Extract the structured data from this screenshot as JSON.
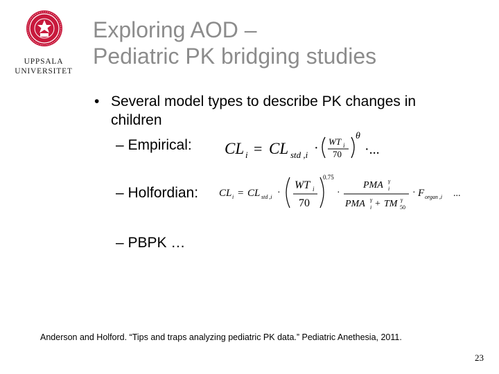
{
  "logo": {
    "line1": "UPPSALA",
    "line2": "UNIVERSITET"
  },
  "title": {
    "line1": "Exploring AOD –",
    "line2": "Pediatric PK bridging studies"
  },
  "bullet": {
    "marker": "•",
    "text": "Several model types to describe PK changes in children"
  },
  "subitems": {
    "empirical": "– Empirical:",
    "holfordian": "– Holfordian:",
    "pbpk": "– PBPK …"
  },
  "equations": {
    "empirical": {
      "lhs": "CL",
      "lhs_sub": "i",
      "eq": "=",
      "rhs": "CL",
      "rhs_sub": "std ,i",
      "dot": "·",
      "num": "WT",
      "num_sub": "i",
      "den": "70",
      "exp": "θ",
      "tail": "·..."
    },
    "holfordian": {
      "lhs": "CL",
      "lhs_sub": "i",
      "eq": "=",
      "rhs": "CL",
      "rhs_sub": "std ,i",
      "dot": "·",
      "num": "WT",
      "num_sub": "i",
      "den": "70",
      "exp": "0.75",
      "pma": "PMA",
      "gamma": "γ",
      "i": "i",
      "plus": "+",
      "tm": "TM",
      "tm_sub": "50",
      "f": "F",
      "f_sub": "organ ,i",
      "tail": "..."
    }
  },
  "footer": "Anderson and Holford. “Tips and traps analyzing pediatric PK data.”  Pediatric Anethesia, 2011.",
  "page_number": "23",
  "colors": {
    "title": "#8c8c8c",
    "seal": "#c8193c"
  }
}
